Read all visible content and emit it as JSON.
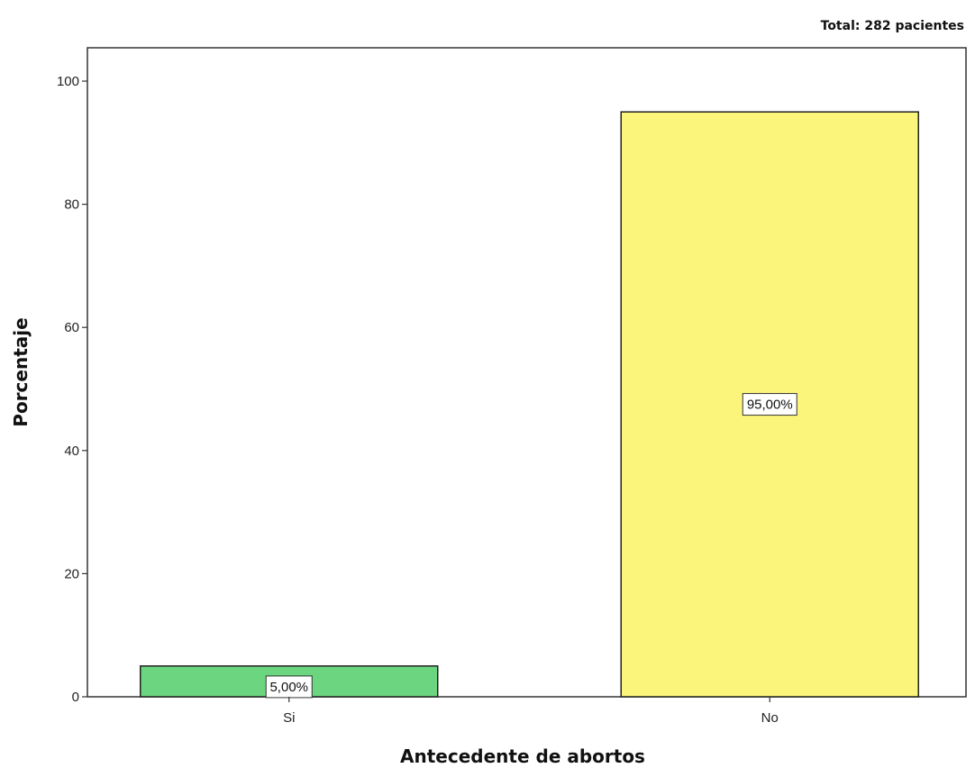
{
  "chart_data": {
    "type": "bar",
    "categories": [
      "Si",
      "No"
    ],
    "values": [
      5.0,
      95.0
    ],
    "data_labels": [
      "5,00%",
      "95,00%"
    ],
    "colors": [
      "#6bd67f",
      "#fbf57c"
    ],
    "title": "",
    "annotation": "Total: 282 pacientes",
    "xlabel": "Antecedente de abortos",
    "ylabel": "Porcentaje",
    "ylim": [
      0,
      105
    ],
    "yticks": [
      0,
      20,
      40,
      60,
      80,
      100
    ],
    "grid": false,
    "legend": "none"
  }
}
